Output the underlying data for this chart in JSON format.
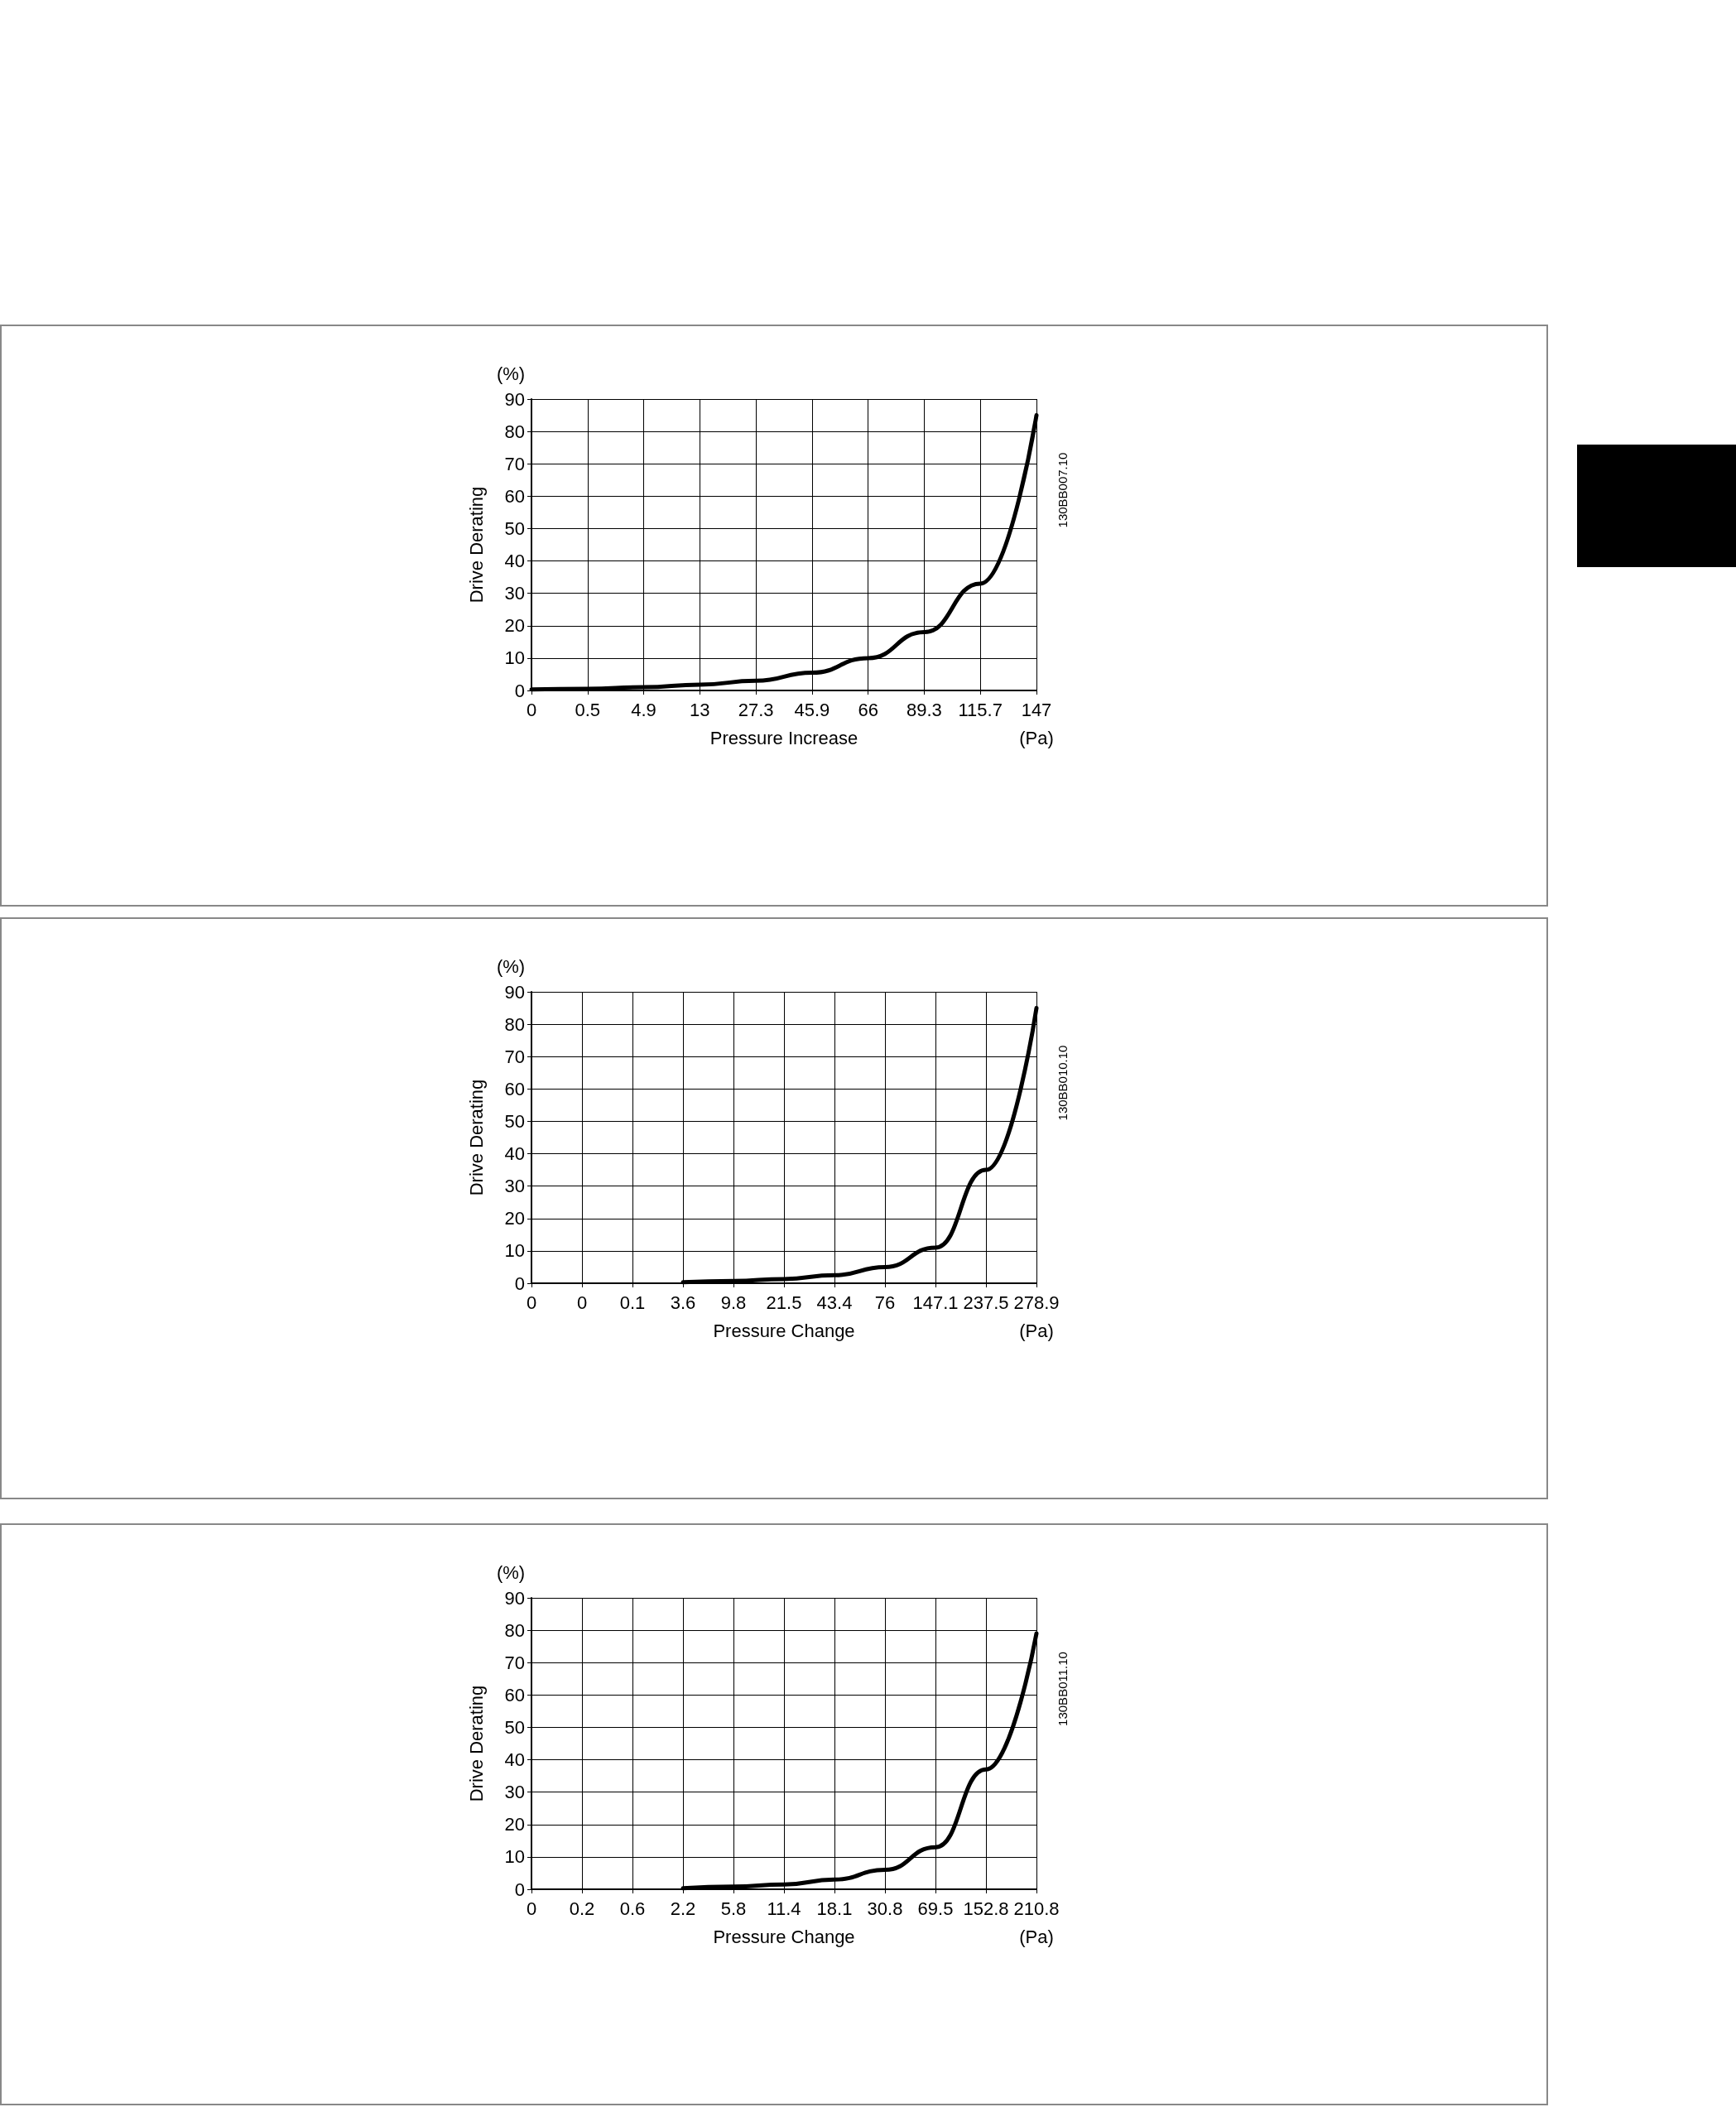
{
  "chart_data": [
    {
      "type": "line",
      "ylabel": "Drive Derating",
      "xlabel": "Pressure Increase",
      "categories": [
        "0",
        "0.5",
        "4.9",
        "13",
        "27.3",
        "45.9",
        "66",
        "89.3",
        "115.7",
        "147"
      ],
      "series": [
        {
          "color": "#000000",
          "values": [
            0.3,
            0.5,
            1,
            1.8,
            3,
            5.5,
            10,
            18,
            33,
            85
          ]
        }
      ],
      "ylim": [
        0,
        90
      ],
      "yticks": [
        0,
        10,
        20,
        30,
        40,
        50,
        60,
        70,
        80,
        90
      ],
      "grid": true,
      "marker": "none",
      "line_style": "solid",
      "annotations": [
        "(%)",
        "(Pa)",
        "130BB007.10"
      ]
    },
    {
      "type": "line",
      "ylabel": "Drive Derating",
      "xlabel": "Pressure Change",
      "categories": [
        "0",
        "0",
        "0.1",
        "3.6",
        "9.8",
        "21.5",
        "43.4",
        "76",
        "147.1",
        "237.5",
        "278.9"
      ],
      "series": [
        {
          "color": "#000000",
          "values": [
            null,
            null,
            null,
            0.3,
            0.7,
            1.3,
            2.5,
            5,
            11,
            35,
            85
          ]
        }
      ],
      "ylim": [
        0,
        90
      ],
      "yticks": [
        0,
        10,
        20,
        30,
        40,
        50,
        60,
        70,
        80,
        90
      ],
      "grid": true,
      "marker": "none",
      "line_style": "solid",
      "annotations": [
        "(%)",
        "(Pa)",
        "130BB010.10"
      ]
    },
    {
      "type": "line",
      "ylabel": "Drive Derating",
      "xlabel": "Pressure Change",
      "categories": [
        "0",
        "0.2",
        "0.6",
        "2.2",
        "5.8",
        "11.4",
        "18.1",
        "30.8",
        "69.5",
        "152.8",
        "210.8"
      ],
      "series": [
        {
          "color": "#000000",
          "values": [
            null,
            null,
            null,
            0.3,
            0.8,
            1.5,
            3,
            6,
            13,
            37,
            79
          ]
        }
      ],
      "ylim": [
        0,
        90
      ],
      "yticks": [
        0,
        10,
        20,
        30,
        40,
        50,
        60,
        70,
        80,
        90
      ],
      "grid": true,
      "marker": "none",
      "line_style": "solid",
      "annotations": [
        "(%)",
        "(Pa)",
        "130BB011.10"
      ]
    }
  ]
}
